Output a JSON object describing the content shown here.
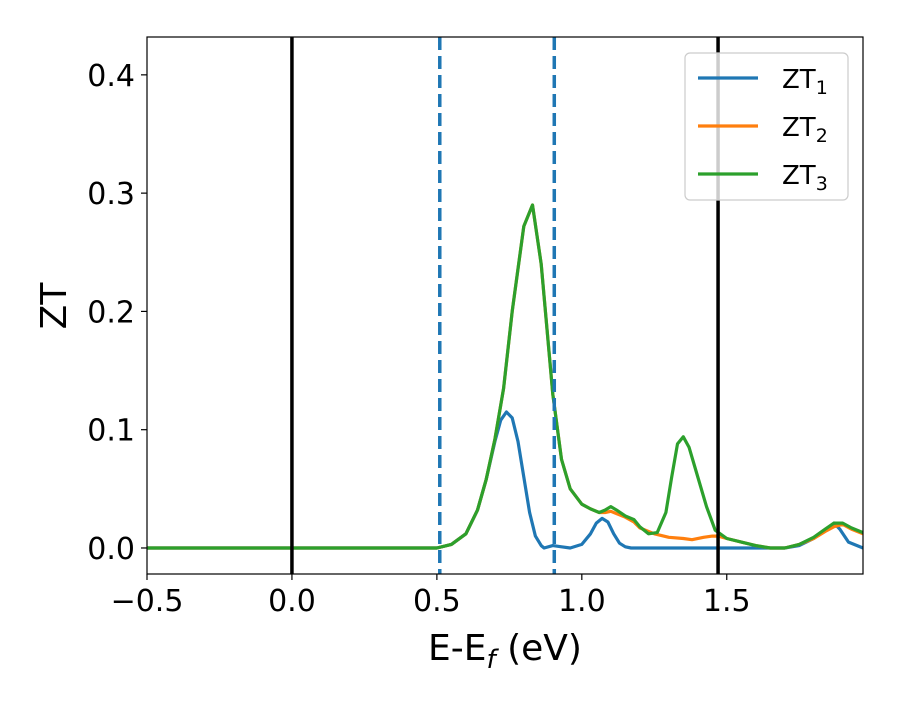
{
  "chart_data": {
    "type": "line",
    "title": "",
    "xlabel": "E-E",
    "xlabel_sub": "f",
    "xlabel_unit": " (eV)",
    "ylabel": "ZT",
    "xlim": [
      -0.5,
      1.97
    ],
    "ylim": [
      -0.022,
      0.432
    ],
    "xticks": [
      -0.5,
      0.0,
      0.5,
      1.0,
      1.5
    ],
    "xtick_labels": [
      "−0.5",
      "0.0",
      "0.5",
      "1.0",
      "1.5"
    ],
    "yticks": [
      0.0,
      0.1,
      0.2,
      0.3,
      0.4
    ],
    "ytick_labels": [
      "0.0",
      "0.1",
      "0.2",
      "0.3",
      "0.4"
    ],
    "grid": false,
    "legend_position": "top-right",
    "vlines": [
      {
        "x": 0.0,
        "style": "solid",
        "color": "#000000"
      },
      {
        "x": 0.51,
        "style": "dashed",
        "color": "#1f77b4"
      },
      {
        "x": 0.905,
        "style": "dashed",
        "color": "#1f77b4"
      },
      {
        "x": 1.47,
        "style": "solid",
        "color": "#000000"
      }
    ],
    "series": [
      {
        "name": "ZT",
        "name_sub": "1",
        "color": "#1f77b4",
        "x": [
          -0.5,
          0.4,
          0.5,
          0.55,
          0.6,
          0.64,
          0.67,
          0.7,
          0.72,
          0.74,
          0.76,
          0.78,
          0.8,
          0.82,
          0.84,
          0.86,
          0.87,
          0.9,
          0.93,
          0.96,
          1.0,
          1.03,
          1.05,
          1.07,
          1.09,
          1.11,
          1.13,
          1.15,
          1.17,
          1.2,
          1.25,
          1.3,
          1.35,
          1.4,
          1.45,
          1.47,
          1.5,
          1.55,
          1.6,
          1.65,
          1.7,
          1.75,
          1.8,
          1.84,
          1.87,
          1.89,
          1.92,
          1.97
        ],
        "y": [
          0.0,
          0.0,
          0.0,
          0.003,
          0.012,
          0.032,
          0.058,
          0.09,
          0.108,
          0.115,
          0.11,
          0.09,
          0.06,
          0.03,
          0.01,
          0.002,
          0.0,
          0.002,
          0.001,
          0.0,
          0.003,
          0.012,
          0.021,
          0.025,
          0.022,
          0.012,
          0.004,
          0.001,
          0.0,
          0.0,
          0.0,
          0.0,
          0.0,
          0.0,
          0.0,
          0.0,
          0.0,
          0.0,
          0.0,
          0.0,
          0.0,
          0.002,
          0.008,
          0.015,
          0.021,
          0.016,
          0.005,
          0.0
        ]
      },
      {
        "name": "ZT",
        "name_sub": "2",
        "color": "#ff7f0e",
        "x": [
          -0.5,
          0.4,
          0.5,
          0.55,
          0.6,
          0.64,
          0.67,
          0.7,
          0.73,
          0.76,
          0.8,
          0.83,
          0.86,
          0.9,
          0.93,
          0.96,
          1.0,
          1.03,
          1.06,
          1.08,
          1.1,
          1.12,
          1.15,
          1.18,
          1.2,
          1.25,
          1.3,
          1.35,
          1.38,
          1.42,
          1.45,
          1.47,
          1.5,
          1.55,
          1.6,
          1.65,
          1.7,
          1.75,
          1.8,
          1.84,
          1.87,
          1.9,
          1.93,
          1.97
        ],
        "y": [
          0.0,
          0.0,
          0.0,
          0.003,
          0.012,
          0.032,
          0.058,
          0.092,
          0.135,
          0.2,
          0.272,
          0.29,
          0.24,
          0.13,
          0.075,
          0.05,
          0.037,
          0.033,
          0.03,
          0.03,
          0.031,
          0.029,
          0.026,
          0.022,
          0.017,
          0.012,
          0.009,
          0.008,
          0.007,
          0.009,
          0.01,
          0.01,
          0.008,
          0.005,
          0.002,
          0.0,
          0.0,
          0.003,
          0.008,
          0.014,
          0.018,
          0.02,
          0.016,
          0.012
        ]
      },
      {
        "name": "ZT",
        "name_sub": "3",
        "color": "#2ca02c",
        "x": [
          -0.5,
          0.4,
          0.5,
          0.55,
          0.6,
          0.64,
          0.67,
          0.7,
          0.73,
          0.76,
          0.8,
          0.83,
          0.86,
          0.9,
          0.93,
          0.96,
          1.0,
          1.03,
          1.06,
          1.08,
          1.1,
          1.12,
          1.15,
          1.18,
          1.2,
          1.23,
          1.26,
          1.29,
          1.31,
          1.33,
          1.35,
          1.37,
          1.4,
          1.43,
          1.46,
          1.5,
          1.55,
          1.6,
          1.65,
          1.7,
          1.75,
          1.8,
          1.84,
          1.87,
          1.9,
          1.93,
          1.97
        ],
        "y": [
          0.0,
          0.0,
          0.0,
          0.003,
          0.012,
          0.032,
          0.058,
          0.092,
          0.135,
          0.2,
          0.272,
          0.29,
          0.24,
          0.13,
          0.075,
          0.05,
          0.037,
          0.033,
          0.03,
          0.032,
          0.035,
          0.032,
          0.027,
          0.024,
          0.018,
          0.012,
          0.013,
          0.03,
          0.06,
          0.088,
          0.094,
          0.085,
          0.06,
          0.035,
          0.015,
          0.008,
          0.005,
          0.002,
          0.0,
          0.0,
          0.003,
          0.009,
          0.016,
          0.021,
          0.021,
          0.017,
          0.013
        ]
      }
    ]
  }
}
